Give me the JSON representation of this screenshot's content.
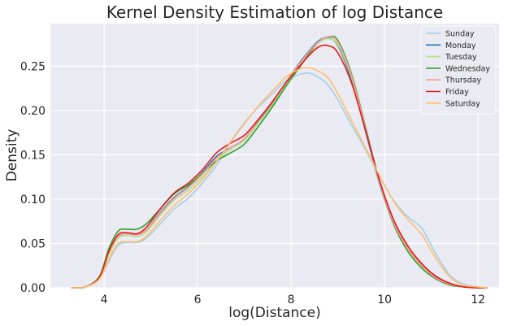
{
  "chart_data": {
    "type": "line",
    "title": "Kernel Density Estimation of log Distance",
    "xlabel": "log(Distance)",
    "ylabel": "Density",
    "xlim": [
      2.85,
      12.45
    ],
    "ylim": [
      0.0,
      0.298
    ],
    "xticks": [
      4,
      6,
      8,
      10,
      12
    ],
    "yticks": [
      0.0,
      0.05,
      0.1,
      0.15,
      0.2,
      0.25
    ],
    "ytick_labels": [
      "0.00",
      "0.05",
      "0.10",
      "0.15",
      "0.20",
      "0.25"
    ],
    "grid": true,
    "legend_position": "top-right",
    "x": [
      3.3,
      3.6,
      3.9,
      4.1,
      4.3,
      4.5,
      4.7,
      4.9,
      5.2,
      5.5,
      5.8,
      6.1,
      6.4,
      6.7,
      7.0,
      7.3,
      7.6,
      7.9,
      8.2,
      8.4,
      8.6,
      8.8,
      9.0,
      9.3,
      9.6,
      9.9,
      10.2,
      10.5,
      10.8,
      11.1,
      11.4,
      11.7,
      12.0,
      12.2
    ],
    "series": [
      {
        "name": "Sunday",
        "color": "#a6cee3",
        "values": [
          0.0,
          0.001,
          0.01,
          0.03,
          0.048,
          0.051,
          0.051,
          0.056,
          0.072,
          0.089,
          0.101,
          0.118,
          0.138,
          0.164,
          0.186,
          0.204,
          0.219,
          0.234,
          0.241,
          0.242,
          0.237,
          0.228,
          0.212,
          0.183,
          0.155,
          0.125,
          0.098,
          0.08,
          0.067,
          0.038,
          0.014,
          0.004,
          0.001,
          0.0
        ]
      },
      {
        "name": "Monday",
        "color": "#1f78b4",
        "values": [
          0.0,
          0.001,
          0.012,
          0.04,
          0.058,
          0.061,
          0.06,
          0.065,
          0.085,
          0.102,
          0.114,
          0.13,
          0.148,
          0.158,
          0.168,
          0.188,
          0.208,
          0.232,
          0.255,
          0.268,
          0.279,
          0.282,
          0.273,
          0.233,
          0.175,
          0.116,
          0.072,
          0.044,
          0.025,
          0.012,
          0.004,
          0.001,
          0.0,
          0.0
        ]
      },
      {
        "name": "Tuesday",
        "color": "#b2df8a",
        "values": [
          0.0,
          0.001,
          0.011,
          0.037,
          0.056,
          0.059,
          0.058,
          0.063,
          0.082,
          0.099,
          0.11,
          0.125,
          0.143,
          0.156,
          0.166,
          0.186,
          0.206,
          0.23,
          0.252,
          0.266,
          0.277,
          0.281,
          0.274,
          0.236,
          0.177,
          0.117,
          0.072,
          0.043,
          0.024,
          0.011,
          0.004,
          0.001,
          0.0,
          0.0
        ]
      },
      {
        "name": "Wednesday",
        "color": "#33a02c",
        "values": [
          0.0,
          0.001,
          0.013,
          0.044,
          0.064,
          0.066,
          0.066,
          0.072,
          0.089,
          0.106,
          0.116,
          0.129,
          0.143,
          0.152,
          0.162,
          0.182,
          0.204,
          0.228,
          0.25,
          0.265,
          0.278,
          0.283,
          0.279,
          0.24,
          0.18,
          0.118,
          0.071,
          0.041,
          0.022,
          0.01,
          0.003,
          0.001,
          0.0,
          0.0
        ]
      },
      {
        "name": "Thursday",
        "color": "#fb9a99",
        "values": [
          0.0,
          0.001,
          0.012,
          0.04,
          0.058,
          0.061,
          0.06,
          0.065,
          0.084,
          0.101,
          0.113,
          0.128,
          0.146,
          0.158,
          0.168,
          0.189,
          0.209,
          0.232,
          0.254,
          0.267,
          0.278,
          0.283,
          0.277,
          0.238,
          0.178,
          0.118,
          0.073,
          0.044,
          0.025,
          0.011,
          0.004,
          0.001,
          0.0,
          0.0
        ]
      },
      {
        "name": "Friday",
        "color": "#e31a1c",
        "values": [
          0.0,
          0.001,
          0.012,
          0.041,
          0.06,
          0.062,
          0.061,
          0.068,
          0.089,
          0.107,
          0.118,
          0.133,
          0.152,
          0.163,
          0.172,
          0.19,
          0.21,
          0.232,
          0.251,
          0.263,
          0.272,
          0.273,
          0.265,
          0.23,
          0.176,
          0.12,
          0.076,
          0.047,
          0.027,
          0.013,
          0.005,
          0.001,
          0.0,
          0.0
        ]
      },
      {
        "name": "Saturday",
        "color": "#fdbf6f",
        "values": [
          0.0,
          0.001,
          0.01,
          0.032,
          0.05,
          0.052,
          0.052,
          0.058,
          0.076,
          0.093,
          0.106,
          0.122,
          0.142,
          0.164,
          0.185,
          0.205,
          0.222,
          0.238,
          0.247,
          0.248,
          0.244,
          0.236,
          0.219,
          0.188,
          0.157,
          0.126,
          0.097,
          0.077,
          0.06,
          0.033,
          0.012,
          0.003,
          0.001,
          0.0
        ]
      }
    ]
  }
}
